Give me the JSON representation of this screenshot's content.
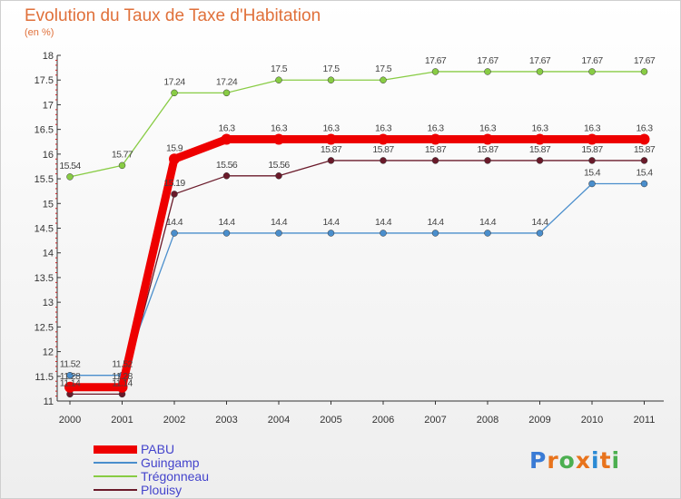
{
  "title": "Evolution du Taux de Taxe d'Habitation",
  "subtitle": "(en %)",
  "chart_data": {
    "type": "line",
    "x": [
      "2000",
      "2001",
      "2002",
      "2003",
      "2004",
      "2005",
      "2006",
      "2007",
      "2008",
      "2009",
      "2010",
      "2011"
    ],
    "ylim": [
      11,
      18
    ],
    "yticks": [
      "11",
      "11.5",
      "12",
      "12.5",
      "13",
      "13.5",
      "14",
      "14.5",
      "15",
      "15.5",
      "16",
      "16.5",
      "17",
      "17.5",
      "18"
    ],
    "grid": false,
    "legend_position": "bottom-left",
    "series": [
      {
        "name": "PABU",
        "color": "#ee0000",
        "values": [
          11.28,
          11.28,
          15.9,
          16.3,
          16.3,
          16.3,
          16.3,
          16.3,
          16.3,
          16.3,
          16.3,
          16.3
        ],
        "labels": [
          "11.28",
          "11.28",
          "15.9",
          "16.3",
          "16.3",
          "16.3",
          "16.3",
          "16.3",
          "16.3",
          "16.3",
          "16.3",
          "16.3"
        ]
      },
      {
        "name": "Guingamp",
        "color": "#4a8ecc",
        "values": [
          11.52,
          11.52,
          14.4,
          14.4,
          14.4,
          14.4,
          14.4,
          14.4,
          14.4,
          14.4,
          15.4,
          15.4
        ],
        "labels": [
          "11.52",
          "11.52",
          "14.4",
          "14.4",
          "14.4",
          "14.4",
          "14.4",
          "14.4",
          "14.4",
          "14.4",
          "15.4",
          "15.4"
        ]
      },
      {
        "name": "Trégonneau",
        "color": "#88cc44",
        "values": [
          15.54,
          15.77,
          17.24,
          17.24,
          17.5,
          17.5,
          17.5,
          17.67,
          17.67,
          17.67,
          17.67,
          17.67
        ],
        "labels": [
          "15.54",
          "15.77",
          "17.24",
          "17.24",
          "17.5",
          "17.5",
          "17.5",
          "17.67",
          "17.67",
          "17.67",
          "17.67",
          "17.67"
        ]
      },
      {
        "name": "Plouisy",
        "color": "#6a1a2a",
        "values": [
          11.14,
          11.14,
          15.19,
          15.56,
          15.56,
          15.87,
          15.87,
          15.87,
          15.87,
          15.87,
          15.87,
          15.87
        ],
        "labels": [
          "11.14",
          "11.14",
          "15.19",
          "15.56",
          "15.56",
          "15.87",
          "15.87",
          "15.87",
          "15.87",
          "15.87",
          "15.87",
          "15.87"
        ]
      }
    ]
  },
  "legend": [
    {
      "label": "PABU",
      "color": "#ee0000",
      "thickness": 9
    },
    {
      "label": "Guingamp",
      "color": "#4a8ecc",
      "thickness": 2
    },
    {
      "label": "Trégonneau",
      "color": "#88cc44",
      "thickness": 2
    },
    {
      "label": "Plouisy",
      "color": "#6a1a2a",
      "thickness": 2
    }
  ],
  "logo": {
    "text": "Proxiti",
    "colors": [
      "#3a7bd5",
      "#e8731c",
      "#4caf50",
      "#e8731c",
      "#2a8ad4",
      "#e8731c",
      "#4caf50"
    ]
  }
}
